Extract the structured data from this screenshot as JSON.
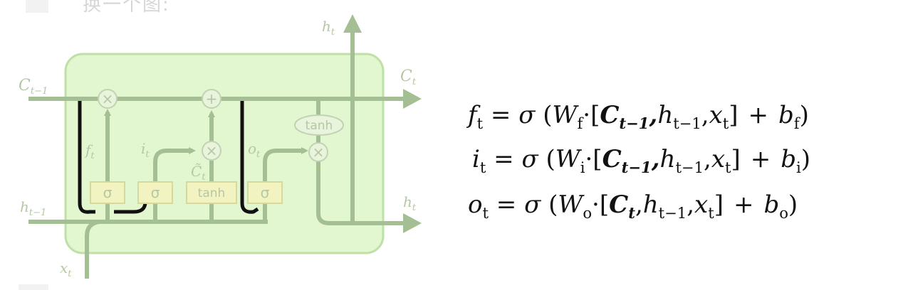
{
  "header_text": "换一个图:",
  "diagram": {
    "labels": {
      "h_t_top": "h_t",
      "c_prev": "C_{t-1}",
      "c_t": "C_t",
      "h_prev": "h_{t-1}",
      "h_t_right": "h_t",
      "x_t": "x_t",
      "f_t": "f_t",
      "i_t": "i_t",
      "c_tilde": "C̃_t",
      "o_t": "o_t"
    },
    "gates": [
      "σ",
      "σ",
      "tanh",
      "σ"
    ],
    "ops": {
      "multiply": "×",
      "add": "+",
      "tanh_oval": "tanh"
    },
    "colors": {
      "cell_fill": "#e2f6d0",
      "cell_border": "#bfe0a6",
      "line": "#a5bf94",
      "text": "#b5c7a5",
      "peephole": "#111111"
    }
  },
  "equations": [
    {
      "lhs": "f",
      "lhs_sub": "t",
      "W_sub": "f",
      "c_term": "C",
      "c_sub": "t−1",
      "b_sub": "f"
    },
    {
      "lhs": "i",
      "lhs_sub": "t",
      "W_sub": "i",
      "c_term": "C",
      "c_sub": "t−1",
      "b_sub": "i"
    },
    {
      "lhs": "o",
      "lhs_sub": "t",
      "W_sub": "o",
      "c_term": "C",
      "c_sub": "t",
      "b_sub": "o"
    }
  ],
  "eq_parts": {
    "eq": "=",
    "sigma": "σ",
    "open": "(",
    "W": "W",
    "dot": "·",
    "lbr": "[",
    "comma": ",",
    "h": "h",
    "h_sub": "t−1",
    "x": "x",
    "x_sub": "t",
    "rbr": "]",
    "plus": "+",
    "b": "b",
    "close": ")"
  }
}
